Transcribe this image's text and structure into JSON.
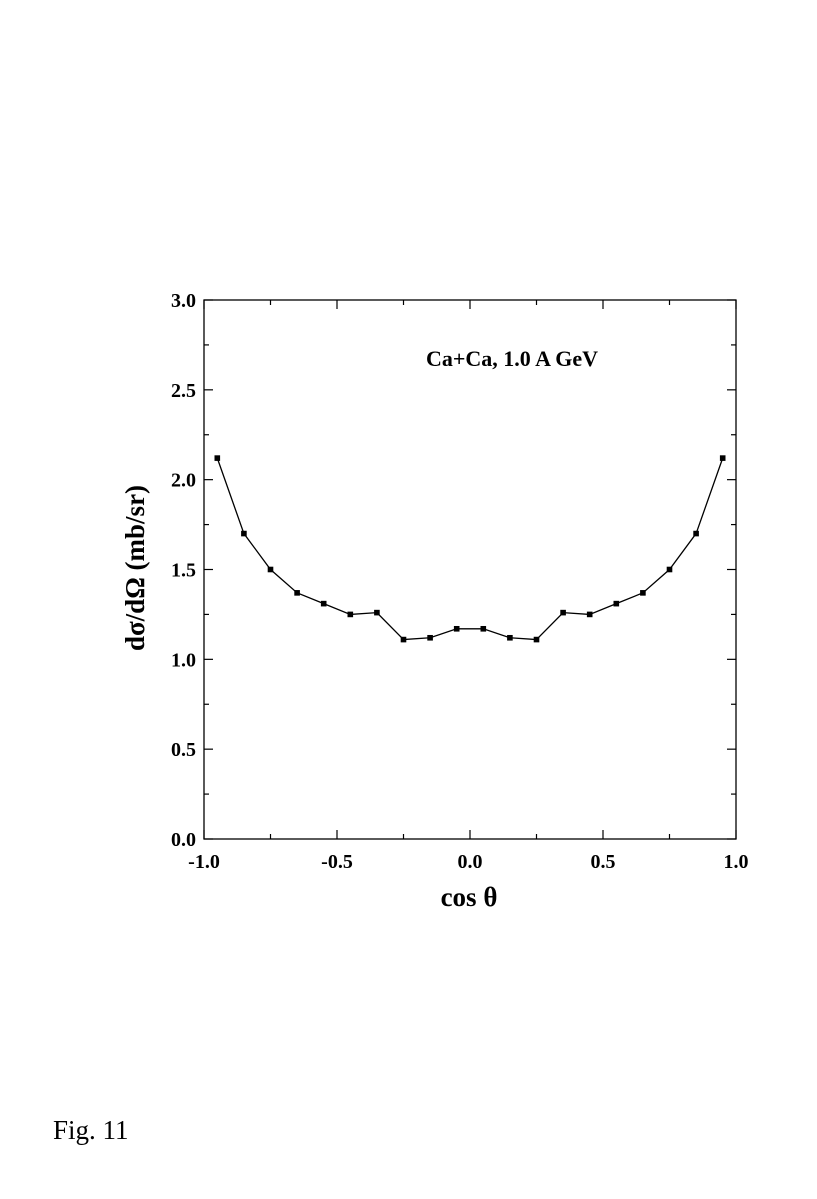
{
  "caption": "Fig. 11",
  "chart_data": {
    "type": "line",
    "title": "",
    "annotation": "Ca+Ca, 1.0 A GeV",
    "xlabel": "cos θ",
    "ylabel": "dσ/dΩ (mb/sr)",
    "xlim": [
      -1.0,
      1.0
    ],
    "ylim": [
      0.0,
      3.0
    ],
    "xticks": [
      -1.0,
      -0.5,
      0.0,
      0.5,
      1.0
    ],
    "xtick_labels": [
      "-1.0",
      "-0.5",
      "0.0",
      "0.5",
      "1.0"
    ],
    "yticks": [
      0.0,
      0.5,
      1.0,
      1.5,
      2.0,
      2.5,
      3.0
    ],
    "ytick_labels": [
      "0.0",
      "0.5",
      "1.0",
      "1.5",
      "2.0",
      "2.5",
      "3.0"
    ],
    "grid": false,
    "line_color": "#000000",
    "marker": "square",
    "series": [
      {
        "x": [
          -0.95,
          -0.85,
          -0.75,
          -0.65,
          -0.55,
          -0.45,
          -0.35,
          -0.25,
          -0.15,
          -0.05,
          0.05,
          0.15,
          0.25,
          0.35,
          0.45,
          0.55,
          0.65,
          0.75,
          0.85,
          0.95
        ],
        "y": [
          2.12,
          1.7,
          1.5,
          1.37,
          1.31,
          1.25,
          1.26,
          1.11,
          1.12,
          1.17,
          1.17,
          1.12,
          1.11,
          1.26,
          1.25,
          1.31,
          1.37,
          1.5,
          1.7,
          2.12
        ]
      }
    ]
  }
}
